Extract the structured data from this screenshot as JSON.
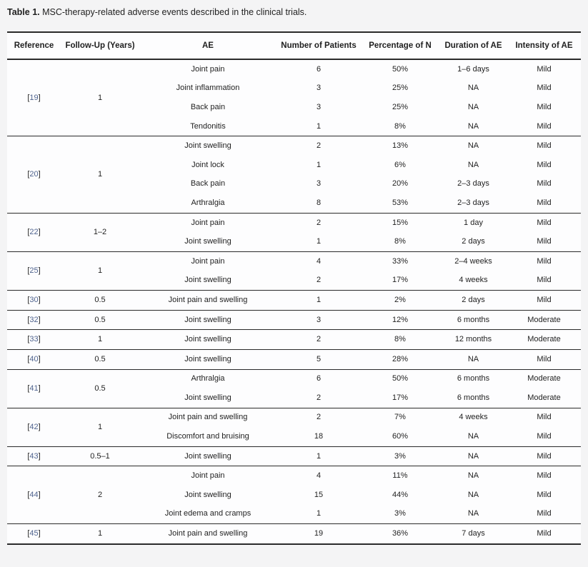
{
  "page": {
    "background": "#f4f4f5",
    "surface": "#fdfdfe",
    "rule_color": "#2a2a2a",
    "link_color": "#50648f"
  },
  "caption": {
    "label": "Table 1.",
    "text": " MSC-therapy-related adverse events described in the clinical trials."
  },
  "table": {
    "columns": [
      "Reference",
      "Follow-Up (Years)",
      "AE",
      "Number of Patients",
      "Percentage of N",
      "Duration of AE",
      "Intensity of AE"
    ],
    "ref_bracket_open": "[",
    "ref_bracket_close": "]",
    "groups": [
      {
        "reference": "19",
        "followup": "1",
        "rows": [
          {
            "ae": "Joint pain",
            "patients": "6",
            "percentage": "50%",
            "duration": "1–6 days",
            "intensity": "Mild"
          },
          {
            "ae": "Joint inflammation",
            "patients": "3",
            "percentage": "25%",
            "duration": "NA",
            "intensity": "Mild"
          },
          {
            "ae": "Back pain",
            "patients": "3",
            "percentage": "25%",
            "duration": "NA",
            "intensity": "Mild"
          },
          {
            "ae": "Tendonitis",
            "patients": "1",
            "percentage": "8%",
            "duration": "NA",
            "intensity": "Mild"
          }
        ]
      },
      {
        "reference": "20",
        "followup": "1",
        "rows": [
          {
            "ae": "Joint swelling",
            "patients": "2",
            "percentage": "13%",
            "duration": "NA",
            "intensity": "Mild"
          },
          {
            "ae": "Joint lock",
            "patients": "1",
            "percentage": "6%",
            "duration": "NA",
            "intensity": "Mild"
          },
          {
            "ae": "Back pain",
            "patients": "3",
            "percentage": "20%",
            "duration": "2–3 days",
            "intensity": "Mild"
          },
          {
            "ae": "Arthralgia",
            "patients": "8",
            "percentage": "53%",
            "duration": "2–3 days",
            "intensity": "Mild"
          }
        ]
      },
      {
        "reference": "22",
        "followup": "1–2",
        "rows": [
          {
            "ae": "Joint pain",
            "patients": "2",
            "percentage": "15%",
            "duration": "1 day",
            "intensity": "Mild"
          },
          {
            "ae": "Joint swelling",
            "patients": "1",
            "percentage": "8%",
            "duration": "2 days",
            "intensity": "Mild"
          }
        ]
      },
      {
        "reference": "25",
        "followup": "1",
        "rows": [
          {
            "ae": "Joint pain",
            "patients": "4",
            "percentage": "33%",
            "duration": "2–4 weeks",
            "intensity": "Mild"
          },
          {
            "ae": "Joint swelling",
            "patients": "2",
            "percentage": "17%",
            "duration": "4 weeks",
            "intensity": "Mild"
          }
        ]
      },
      {
        "reference": "30",
        "followup": "0.5",
        "rows": [
          {
            "ae": "Joint pain and swelling",
            "patients": "1",
            "percentage": "2%",
            "duration": "2 days",
            "intensity": "Mild"
          }
        ]
      },
      {
        "reference": "32",
        "followup": "0.5",
        "rows": [
          {
            "ae": "Joint swelling",
            "patients": "3",
            "percentage": "12%",
            "duration": "6 months",
            "intensity": "Moderate"
          }
        ]
      },
      {
        "reference": "33",
        "followup": "1",
        "rows": [
          {
            "ae": "Joint swelling",
            "patients": "2",
            "percentage": "8%",
            "duration": "12 months",
            "intensity": "Moderate"
          }
        ]
      },
      {
        "reference": "40",
        "followup": "0.5",
        "rows": [
          {
            "ae": "Joint swelling",
            "patients": "5",
            "percentage": "28%",
            "duration": "NA",
            "intensity": "Mild"
          }
        ]
      },
      {
        "reference": "41",
        "followup": "0.5",
        "rows": [
          {
            "ae": "Arthralgia",
            "patients": "6",
            "percentage": "50%",
            "duration": "6 months",
            "intensity": "Moderate"
          },
          {
            "ae": "Joint swelling",
            "patients": "2",
            "percentage": "17%",
            "duration": "6 months",
            "intensity": "Moderate"
          }
        ]
      },
      {
        "reference": "42",
        "followup": "1",
        "rows": [
          {
            "ae": "Joint pain and swelling",
            "patients": "2",
            "percentage": "7%",
            "duration": "4 weeks",
            "intensity": "Mild"
          },
          {
            "ae": "Discomfort and bruising",
            "patients": "18",
            "percentage": "60%",
            "duration": "NA",
            "intensity": "Mild"
          }
        ]
      },
      {
        "reference": "43",
        "followup": "0.5–1",
        "rows": [
          {
            "ae": "Joint swelling",
            "patients": "1",
            "percentage": "3%",
            "duration": "NA",
            "intensity": "Mild"
          }
        ]
      },
      {
        "reference": "44",
        "followup": "2",
        "rows": [
          {
            "ae": "Joint pain",
            "patients": "4",
            "percentage": "11%",
            "duration": "NA",
            "intensity": "Mild"
          },
          {
            "ae": "Joint swelling",
            "patients": "15",
            "percentage": "44%",
            "duration": "NA",
            "intensity": "Mild"
          },
          {
            "ae": "Joint edema and cramps",
            "patients": "1",
            "percentage": "3%",
            "duration": "NA",
            "intensity": "Mild"
          }
        ]
      },
      {
        "reference": "45",
        "followup": "1",
        "rows": [
          {
            "ae": "Joint pain and swelling",
            "patients": "19",
            "percentage": "36%",
            "duration": "7 days",
            "intensity": "Mild"
          }
        ]
      }
    ]
  }
}
